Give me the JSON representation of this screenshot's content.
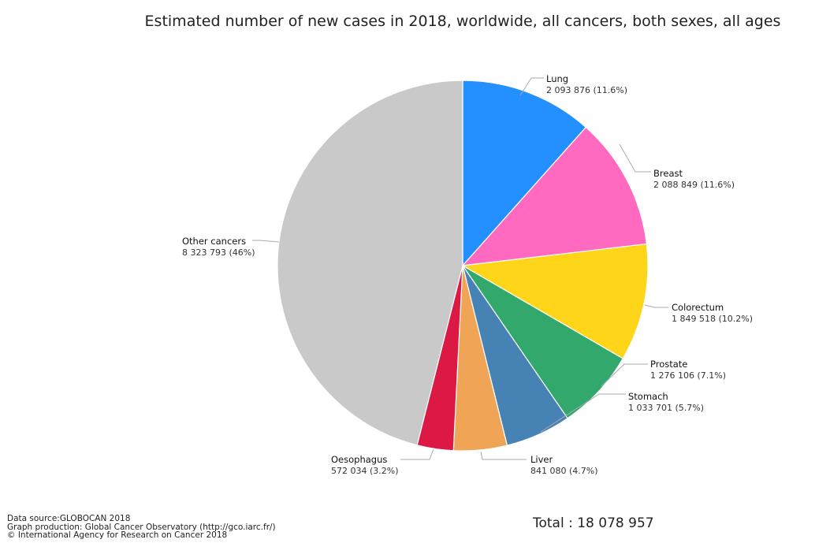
{
  "chart_data": {
    "type": "pie",
    "title": "Estimated number of new cases in 2018, worldwide, all cancers, both sexes, all ages",
    "slices": [
      {
        "name": "Lung",
        "value": 2093876,
        "value_label": "2 093 876 (11.6%)",
        "percent": 11.6,
        "color": "#2490FF"
      },
      {
        "name": "Breast",
        "value": 2088849,
        "value_label": "2 088 849 (11.6%)",
        "percent": 11.6,
        "color": "#FF69BF"
      },
      {
        "name": "Colorectum",
        "value": 1849518,
        "value_label": "1 849 518 (10.2%)",
        "percent": 10.2,
        "color": "#FED518"
      },
      {
        "name": "Prostate",
        "value": 1276106,
        "value_label": "1 276 106 (7.1%)",
        "percent": 7.1,
        "color": "#33A86C"
      },
      {
        "name": "Stomach",
        "value": 1033701,
        "value_label": "1 033 701 (5.7%)",
        "percent": 5.7,
        "color": "#4782B5"
      },
      {
        "name": "Liver",
        "value": 841080,
        "value_label": "841 080 (4.7%)",
        "percent": 4.7,
        "color": "#F0A556"
      },
      {
        "name": "Oesophagus",
        "value": 572034,
        "value_label": "572 034 (3.2%)",
        "percent": 3.2,
        "color": "#DC1844"
      },
      {
        "name": "Other cancers",
        "value": 8323793,
        "value_label": "8 323 793 (46%)",
        "percent": 46,
        "color": "#C9C9C9"
      }
    ],
    "total_label": "Total : 18 078 957"
  },
  "footer": {
    "source": "Data source:GLOBOCAN 2018",
    "production": "Graph production: Global Cancer Observatory (http://gco.iarc.fr/)",
    "copyright": "© International Agency for Research on Cancer 2018"
  }
}
